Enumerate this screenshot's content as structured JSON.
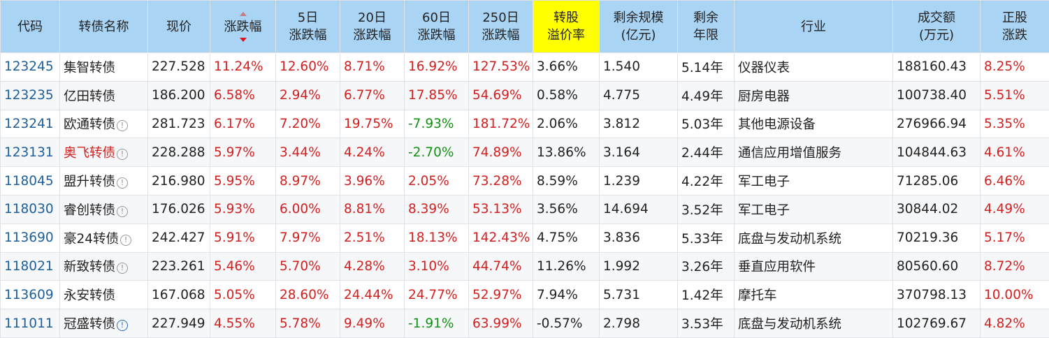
{
  "headers": [
    {
      "l1": "代码",
      "l2": ""
    },
    {
      "l1": "转债名称",
      "l2": ""
    },
    {
      "l1": "现价",
      "l2": ""
    },
    {
      "l1": "涨跌幅",
      "l2": ""
    },
    {
      "l1": "5日",
      "l2": "涨跌幅"
    },
    {
      "l1": "20日",
      "l2": "涨跌幅"
    },
    {
      "l1": "60日",
      "l2": "涨跌幅"
    },
    {
      "l1": "250日",
      "l2": "涨跌幅"
    },
    {
      "l1": "转股",
      "l2": "溢价率"
    },
    {
      "l1": "剩余规模",
      "l2": "(亿元)"
    },
    {
      "l1": "剩余",
      "l2": "年限"
    },
    {
      "l1": "行业",
      "l2": ""
    },
    {
      "l1": "成交额",
      "l2": "(万元)"
    },
    {
      "l1": "正股",
      "l2": "涨跌"
    }
  ],
  "colors": {
    "header_bg": "#a9d4f4",
    "highlight": "#ffff00",
    "up": "#d41f1f",
    "down": "#139113",
    "code": "#1d5f9c"
  },
  "rows": [
    {
      "code": "123245",
      "name": "集智转债",
      "icon": "",
      "price": "227.528",
      "chg": "11.24%",
      "chg5": "12.60%",
      "chg20": "8.71%",
      "chg60": "16.92%",
      "chg250": "127.53%",
      "premium": "3.66%",
      "scale": "1.540",
      "years": "5.14年",
      "industry": "仪器仪表",
      "turnover": "188160.43",
      "stock_chg": "8.25%"
    },
    {
      "code": "123235",
      "name": "亿田转债",
      "icon": "",
      "price": "186.200",
      "chg": "6.58%",
      "chg5": "2.94%",
      "chg20": "6.77%",
      "chg60": "17.85%",
      "chg250": "54.69%",
      "premium": "0.58%",
      "scale": "4.775",
      "years": "4.49年",
      "industry": "厨房电器",
      "turnover": "100738.40",
      "stock_chg": "5.51%"
    },
    {
      "code": "123241",
      "name": "欧通转债",
      "icon": "info-icon",
      "price": "281.723",
      "chg": "6.17%",
      "chg5": "7.20%",
      "chg20": "19.75%",
      "chg60": "-7.93%",
      "chg250": "181.72%",
      "premium": "2.06%",
      "scale": "3.812",
      "years": "5.03年",
      "industry": "其他电源设备",
      "turnover": "276966.94",
      "stock_chg": "5.35%"
    },
    {
      "code": "123131",
      "name": "奥飞转债",
      "icon": "info-icon",
      "name_red": true,
      "price": "228.288",
      "chg": "5.97%",
      "chg5": "3.44%",
      "chg20": "4.24%",
      "chg60": "-2.70%",
      "chg250": "74.89%",
      "premium": "13.86%",
      "scale": "3.164",
      "years": "2.44年",
      "industry": "通信应用增值服务",
      "turnover": "104844.63",
      "stock_chg": "4.61%"
    },
    {
      "code": "118045",
      "name": "盟升转债",
      "icon": "info-icon",
      "price": "216.980",
      "chg": "5.95%",
      "chg5": "8.97%",
      "chg20": "3.96%",
      "chg60": "2.05%",
      "chg250": "73.28%",
      "premium": "8.59%",
      "scale": "1.239",
      "years": "4.22年",
      "industry": "军工电子",
      "turnover": "71285.06",
      "stock_chg": "6.46%"
    },
    {
      "code": "118030",
      "name": "睿创转债",
      "icon": "info-icon",
      "price": "176.026",
      "chg": "5.93%",
      "chg5": "6.00%",
      "chg20": "8.81%",
      "chg60": "8.39%",
      "chg250": "53.13%",
      "premium": "3.56%",
      "scale": "14.694",
      "years": "3.52年",
      "industry": "军工电子",
      "turnover": "30844.02",
      "stock_chg": "4.49%"
    },
    {
      "code": "113690",
      "name": "豪24转债",
      "icon": "info-icon",
      "price": "242.427",
      "chg": "5.91%",
      "chg5": "7.97%",
      "chg20": "2.51%",
      "chg60": "18.13%",
      "chg250": "142.43%",
      "premium": "4.75%",
      "scale": "3.836",
      "years": "5.33年",
      "industry": "底盘与发动机系统",
      "turnover": "70219.36",
      "stock_chg": "5.17%"
    },
    {
      "code": "118021",
      "name": "新致转债",
      "icon": "info-icon",
      "price": "223.261",
      "chg": "5.46%",
      "chg5": "5.70%",
      "chg20": "4.28%",
      "chg60": "3.10%",
      "chg250": "44.74%",
      "premium": "11.26%",
      "scale": "1.992",
      "years": "3.26年",
      "industry": "垂直应用软件",
      "turnover": "80560.60",
      "stock_chg": "8.72%"
    },
    {
      "code": "113609",
      "name": "永安转债",
      "icon": "",
      "price": "167.068",
      "chg": "5.05%",
      "chg5": "28.60%",
      "chg20": "24.44%",
      "chg60": "24.77%",
      "chg250": "52.97%",
      "premium": "7.94%",
      "scale": "5.731",
      "years": "1.42年",
      "industry": "摩托车",
      "turnover": "370798.13",
      "stock_chg": "10.00%"
    },
    {
      "code": "111011",
      "name": "冠盛转债",
      "icon": "info-icon-blue",
      "price": "227.949",
      "chg": "4.55%",
      "chg5": "5.78%",
      "chg20": "9.49%",
      "chg60": "-1.91%",
      "chg250": "63.99%",
      "premium": "-0.57%",
      "scale": "2.798",
      "years": "3.53年",
      "industry": "底盘与发动机系统",
      "turnover": "102769.67",
      "stock_chg": "4.82%"
    }
  ]
}
